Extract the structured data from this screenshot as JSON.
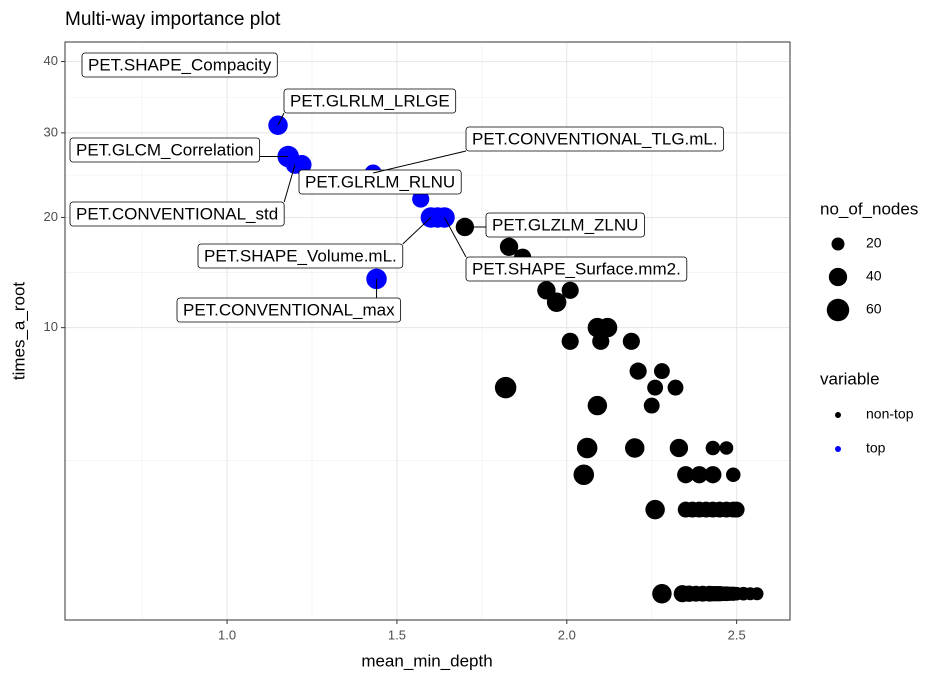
{
  "chart_data": {
    "type": "scatter",
    "title": "Multi-way importance plot",
    "x_label": "mean_min_depth",
    "y_label": "times_a_root",
    "y_scale": "sqrt",
    "grid": true,
    "xlim": [
      0.62,
      2.56
    ],
    "ylim": [
      0,
      39
    ],
    "xticks": [
      {
        "value": 1,
        "label": "1.0"
      },
      1.5,
      {
        "value": 2,
        "label": "2.0"
      },
      2.5
    ],
    "yticks": [
      10,
      20,
      30,
      40
    ],
    "size_legend": {
      "title": "no_of_nodes",
      "values": [
        20,
        40,
        60
      ]
    },
    "color_legend_title": "variable",
    "series": [
      {
        "name": "non-top",
        "color": "#000000",
        "x": [
          1.7,
          1.83,
          1.87,
          1.94,
          2.01,
          1.97,
          2.09,
          2.12,
          2.01,
          2.1,
          2.19,
          2.21,
          2.28,
          2.26,
          2.32,
          1.82,
          2.25,
          2.09,
          2.06,
          2.2,
          2.33,
          2.43,
          2.47,
          2.05,
          2.35,
          2.39,
          2.43,
          2.49,
          2.26,
          2.35,
          2.37,
          2.39,
          2.41,
          2.43,
          2.45,
          2.47,
          2.49,
          2.5,
          2.28,
          2.34,
          2.36,
          2.38,
          2.4,
          2.42,
          2.43,
          2.44,
          2.45,
          2.46,
          2.47,
          2.48,
          2.49,
          2.5,
          2.52,
          2.54,
          2.56
        ],
        "values": [
          19,
          17,
          16,
          13,
          13,
          12,
          10,
          10,
          9,
          9,
          9,
          7,
          7,
          6,
          6,
          6,
          5,
          5,
          3,
          3,
          3,
          3,
          3,
          2,
          2,
          2,
          2,
          2,
          1,
          1,
          1,
          1,
          1,
          1,
          1,
          1,
          1,
          1,
          0,
          0,
          0,
          0,
          0,
          0,
          0,
          0,
          0,
          0,
          0,
          0,
          0,
          0,
          0,
          0,
          0
        ],
        "sizes": [
          40,
          40,
          35,
          40,
          35,
          45,
          45,
          45,
          35,
          35,
          35,
          35,
          30,
          30,
          30,
          55,
          30,
          45,
          50,
          45,
          40,
          25,
          22,
          50,
          35,
          35,
          35,
          25,
          45,
          30,
          30,
          30,
          30,
          30,
          30,
          30,
          30,
          30,
          45,
          35,
          32,
          30,
          30,
          30,
          28,
          28,
          28,
          26,
          26,
          24,
          24,
          22,
          22,
          20,
          20
        ],
        "labels": [
          "PET.GLZLM_ZLNU",
          null,
          null,
          null,
          null,
          null,
          null,
          null,
          null,
          null,
          null,
          null,
          null,
          null,
          null,
          null,
          null,
          null,
          null,
          null,
          null,
          null,
          null,
          null,
          null,
          null,
          null,
          null,
          null,
          null,
          null,
          null,
          null,
          null,
          null,
          null,
          null,
          null,
          null,
          null,
          null,
          null,
          null,
          null,
          null,
          null,
          null,
          null,
          null,
          null,
          null,
          null,
          null,
          null,
          null
        ]
      },
      {
        "name": "top",
        "color": "#0000ff",
        "x": [
          0.62,
          1.15,
          1.18,
          1.2,
          1.22,
          1.43,
          1.57,
          1.6,
          1.62,
          1.64,
          1.44
        ],
        "values": [
          39,
          31,
          27,
          26,
          26,
          25,
          22,
          20,
          20,
          20,
          14
        ],
        "sizes": [
          25,
          45,
          55,
          40,
          45,
          35,
          35,
          50,
          50,
          50,
          50
        ],
        "labels": [
          "PET.SHAPE_Compacity",
          "PET.GLRLM_LRLGE",
          "PET.GLCM_Correlation",
          "PET.CONVENTIONAL_std",
          "PET.GLRLM_RLNU",
          "PET.CONVENTIONAL_TLG.mL.",
          null,
          "PET.SHAPE_Volume.mL.",
          null,
          "PET.SHAPE_Surface.mm2.",
          "PET.CONVENTIONAL_max"
        ]
      }
    ]
  }
}
